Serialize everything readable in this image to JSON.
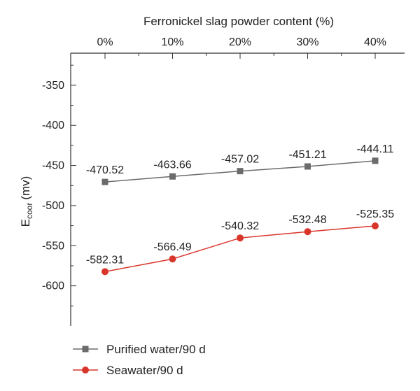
{
  "chart_data": {
    "type": "line",
    "xlabel": "Ferronickel slag powder content (%)",
    "ylabel": "E",
    "ylabel_sub": "coor",
    "ylabel_unit": "(mv)",
    "categories": [
      "0%",
      "10%",
      "20%",
      "30%",
      "40%"
    ],
    "ylim": [
      -650,
      -310
    ],
    "yticks": [
      -350,
      -400,
      -450,
      -500,
      -550,
      -600
    ],
    "ytick_labels": [
      "-350",
      "-400",
      "-450",
      "-500",
      "-550",
      "-600"
    ],
    "legend_position": "bottom-left",
    "series": [
      {
        "name": "Purified water/90 d",
        "marker": "square",
        "color": "#6b6b6b",
        "values": [
          -470.52,
          -463.66,
          -457.02,
          -451.21,
          -444.11
        ],
        "labels": [
          "-470.52",
          "-463.66",
          "-457.02",
          "-451.21",
          "-444.11"
        ]
      },
      {
        "name": "Seawater/90 d",
        "marker": "circle",
        "color": "#d9362b",
        "values": [
          -582.31,
          -566.49,
          -540.32,
          -532.48,
          -525.35
        ],
        "labels": [
          "-582.31",
          "-566.49",
          "-540.32",
          "-532.48",
          "-525.35"
        ]
      }
    ]
  }
}
